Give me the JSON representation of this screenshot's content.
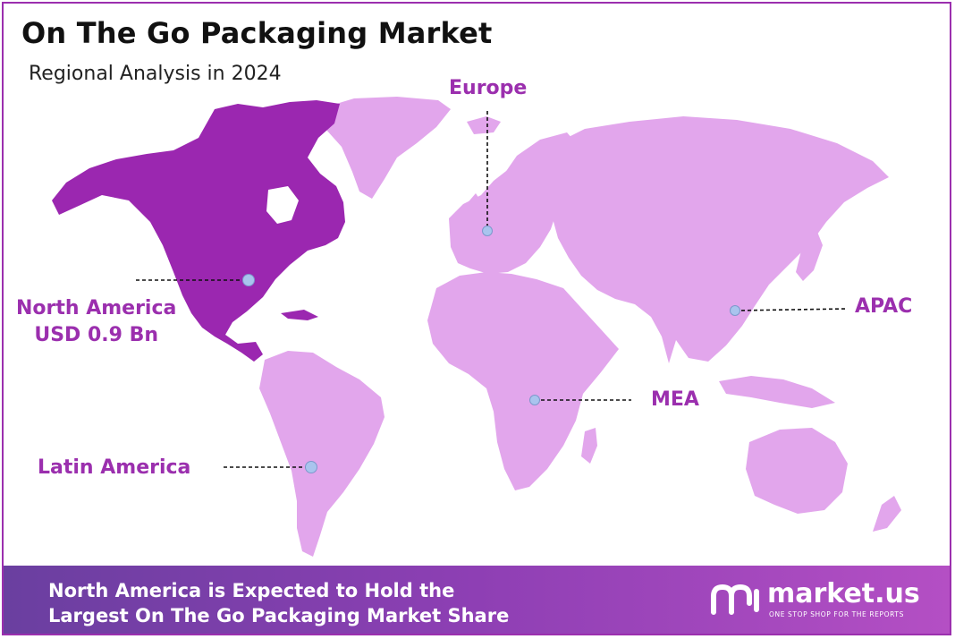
{
  "header": {
    "title": "On The Go Packaging Market",
    "subtitle": "Regional Analysis in 2024"
  },
  "colors": {
    "highlight_region": "#9b27b0",
    "other_regions": "#e2a6ec",
    "label_text": "#9b2fae",
    "marker": "#a9c4ee"
  },
  "regions": {
    "europe": {
      "label": "Europe"
    },
    "north_america": {
      "label": "North America",
      "value": "USD 0.9 Bn"
    },
    "apac": {
      "label": "APAC"
    },
    "mea": {
      "label": "MEA"
    },
    "latin_america": {
      "label": "Latin America"
    }
  },
  "footer": {
    "line1": "North America is Expected to Hold the",
    "line2": "Largest On The Go Packaging Market Share"
  },
  "brand": {
    "name": "market.us",
    "tagline": "ONE STOP SHOP FOR THE REPORTS"
  }
}
